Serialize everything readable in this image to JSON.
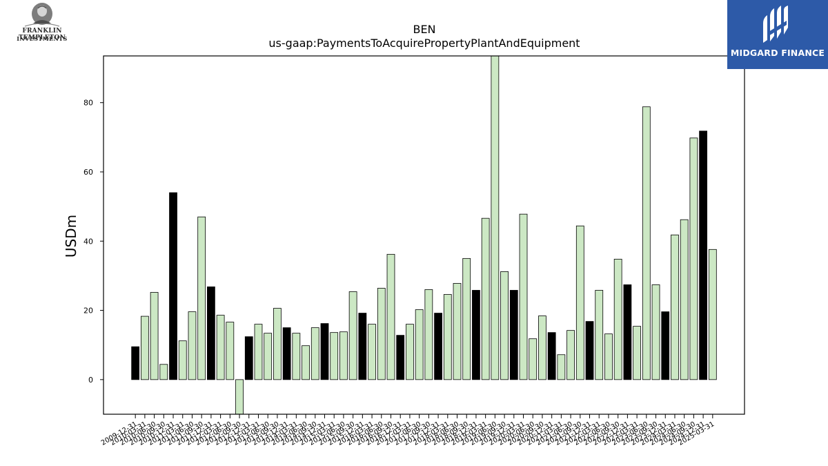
{
  "logos": {
    "left": {
      "line1": "FRANKLIN TEMPLETON",
      "line2": "INVESTMENTS",
      "icon": "portrait-seal-icon"
    },
    "right": {
      "brand": "MIDGARD FINANCE",
      "icon": "midgard-monogram-icon",
      "background": "#2d5aa8"
    }
  },
  "chart_data": {
    "type": "bar",
    "title": "BEN",
    "subtitle": "us-gaap:PaymentsToAcquirePropertyPlantAndEquipment",
    "xlabel": "",
    "ylabel": "USDm",
    "ylim": [
      -10,
      93.5
    ],
    "yticks": [
      0,
      20,
      40,
      60,
      80
    ],
    "grid": false,
    "colors": {
      "annual": "#000000",
      "quarter": "#cce8c4",
      "edge": "#000000"
    },
    "categories": [
      "2009-12-31",
      "2010-03-31",
      "2010-06-30",
      "2010-09-30",
      "2010-12-31",
      "2011-03-31",
      "2011-06-30",
      "2011-09-30",
      "2011-12-31",
      "2012-03-31",
      "2012-06-30",
      "2012-09-30",
      "2012-12-31",
      "2013-03-31",
      "2013-06-30",
      "2013-09-30",
      "2013-12-31",
      "2014-03-31",
      "2014-06-30",
      "2014-09-30",
      "2014-12-31",
      "2015-03-31",
      "2015-06-30",
      "2015-09-30",
      "2015-12-31",
      "2016-03-31",
      "2016-06-30",
      "2016-09-30",
      "2016-12-31",
      "2017-03-31",
      "2017-06-30",
      "2017-09-30",
      "2017-12-31",
      "2018-03-31",
      "2018-06-30",
      "2018-09-30",
      "2018-12-31",
      "2019-03-31",
      "2019-06-30",
      "2019-09-30",
      "2019-12-31",
      "2020-03-31",
      "2020-06-30",
      "2020-09-30",
      "2020-12-31",
      "2021-03-31",
      "2021-06-30",
      "2021-09-30",
      "2021-12-31",
      "2022-03-31",
      "2022-06-30",
      "2022-09-30",
      "2022-12-31",
      "2023-03-31",
      "2023-06-30",
      "2023-09-30",
      "2023-12-31",
      "2024-03-31",
      "2024-06-30",
      "2024-09-30",
      "2024-12-31",
      "2025-03-31"
    ],
    "tick_labels": [
      "2009-12-31",
      "2010-03-31",
      "2010-06-30",
      "2010-09-30",
      "2010-12-31",
      "2011-03-31",
      "2011-06-30",
      "2011-09-30",
      "2011-12-31",
      "2012-03-31",
      "2012-06-30",
      "2012-09-30",
      "2012-12-31",
      "2013-03-31",
      "2013-06-30",
      "2013-09-30",
      "2013-12-31",
      "2014-03-31",
      "2014-06-30",
      "2014-09-30",
      "2014-12-31",
      "2015-03-31",
      "2015-06-30",
      "2015-09-30",
      "2015-12-31",
      "2016-03-31",
      "2016-06-30",
      "2016-09-30",
      "2016-12-31",
      "2017-03-31",
      "2017-06-30",
      "2017-09-30",
      "2017-12-31",
      "2018-03-31",
      "2018-06-30",
      "2018-09-30",
      "2018-12-31",
      "2019-03-31",
      "2019-06-30",
      "2019-09-30",
      "2019-12-31",
      "2020-03-31",
      "2020-06-30",
      "2020-09-30",
      "2020-12-31",
      "2021-03-31",
      "2021-06-30",
      "2021-09-30",
      "2021-12-31",
      "2022-03-31",
      "2022-06-30",
      "2022-09-30",
      "2022-12-31",
      "2023-03-31",
      "2023-06-30",
      "2023-09-30",
      "2023-12-31",
      "2024-03-31",
      "2024-06-30",
      "2024-09-30",
      "2024-12-31",
      "2025-03-31"
    ],
    "values": [
      9.5,
      18.3,
      25.2,
      4.4,
      54.0,
      11.2,
      19.6,
      47.0,
      26.8,
      18.6,
      16.6,
      -10.2,
      12.4,
      16.0,
      13.4,
      20.6,
      15.0,
      13.4,
      9.8,
      15.0,
      16.2,
      13.6,
      13.8,
      25.4,
      19.2,
      16.0,
      26.4,
      36.2,
      12.8,
      16.0,
      20.2,
      26.0,
      19.2,
      24.6,
      27.8,
      35.0,
      25.8,
      46.6,
      93.5,
      31.2,
      25.8,
      47.8,
      11.8,
      18.4,
      13.6,
      7.2,
      14.2,
      44.4,
      16.8,
      25.8,
      13.2,
      34.8,
      27.4,
      15.4,
      78.8,
      27.4,
      19.6,
      41.8,
      46.2,
      69.8,
      71.8,
      37.6
    ],
    "annual": [
      true,
      false,
      false,
      false,
      true,
      false,
      false,
      false,
      true,
      false,
      false,
      false,
      true,
      false,
      false,
      false,
      true,
      false,
      false,
      false,
      true,
      false,
      false,
      false,
      true,
      false,
      false,
      false,
      true,
      false,
      false,
      false,
      true,
      false,
      false,
      false,
      true,
      false,
      false,
      false,
      true,
      false,
      false,
      false,
      true,
      false,
      false,
      false,
      true,
      false,
      false,
      false,
      true,
      false,
      false,
      false,
      true,
      false,
      false,
      false,
      true,
      false
    ]
  }
}
